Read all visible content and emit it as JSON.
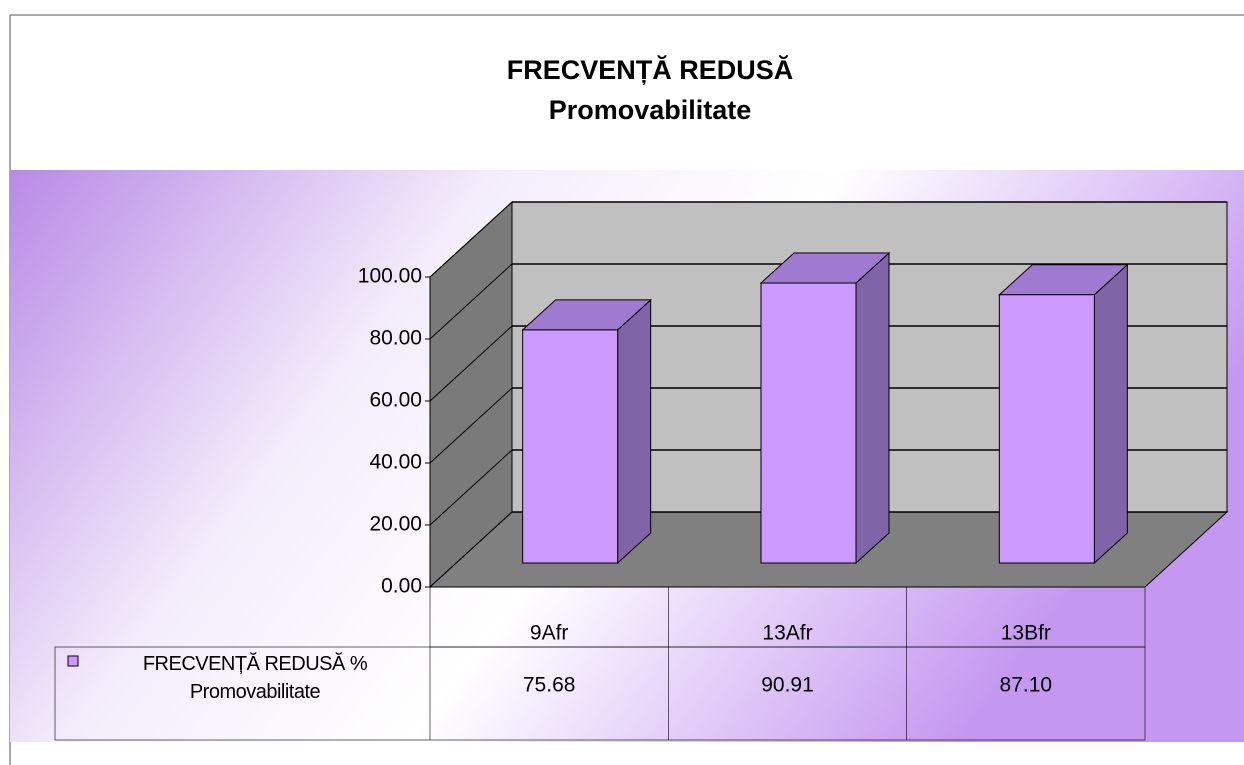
{
  "chart_data": {
    "type": "bar3d",
    "title": "FRECVENȚĂ REDUSĂ",
    "subtitle": "Promovabilitate",
    "categories": [
      "9Afr",
      "13Afr",
      "13Bfr"
    ],
    "series": [
      {
        "name": "FRECVENȚĂ REDUSĂ % Promovabilitate",
        "color": "#cc99ff",
        "values": [
          75.68,
          90.91,
          87.1
        ],
        "value_labels": [
          "75.68",
          "90.91",
          "87.10"
        ]
      }
    ],
    "ylim": [
      0,
      100
    ],
    "yticks": [
      {
        "value": 0,
        "label": "0.00"
      },
      {
        "value": 20,
        "label": "20.00"
      },
      {
        "value": 40,
        "label": "40.00"
      },
      {
        "value": 60,
        "label": "60.00"
      },
      {
        "value": 80,
        "label": "80.00"
      },
      {
        "value": 100,
        "label": "100.00"
      }
    ],
    "grid": true
  }
}
